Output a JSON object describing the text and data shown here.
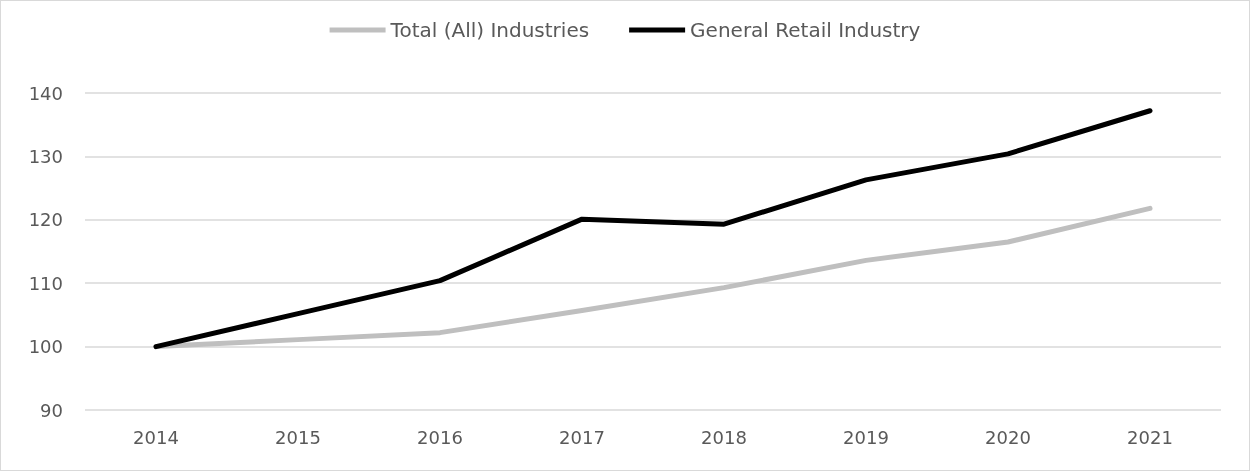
{
  "chart_data": {
    "type": "line",
    "categories": [
      "2014",
      "2015",
      "2016",
      "2017",
      "2018",
      "2019",
      "2020",
      "2021"
    ],
    "series": [
      {
        "name": "Total (All) Industries",
        "color": "#bfbfbf",
        "values": [
          100,
          101.1,
          102.2,
          105.7,
          109.3,
          113.6,
          116.5,
          121.8
        ]
      },
      {
        "name": "General Retail Industry",
        "color": "#000000",
        "values": [
          100,
          105.2,
          110.4,
          120.1,
          119.3,
          126.3,
          130.4,
          137.2
        ]
      }
    ],
    "ylim": [
      90,
      140
    ],
    "yticks": [
      90,
      100,
      110,
      120,
      130,
      140
    ],
    "grid": "y",
    "legend": "top",
    "marker": "none",
    "line_style": "solid"
  }
}
